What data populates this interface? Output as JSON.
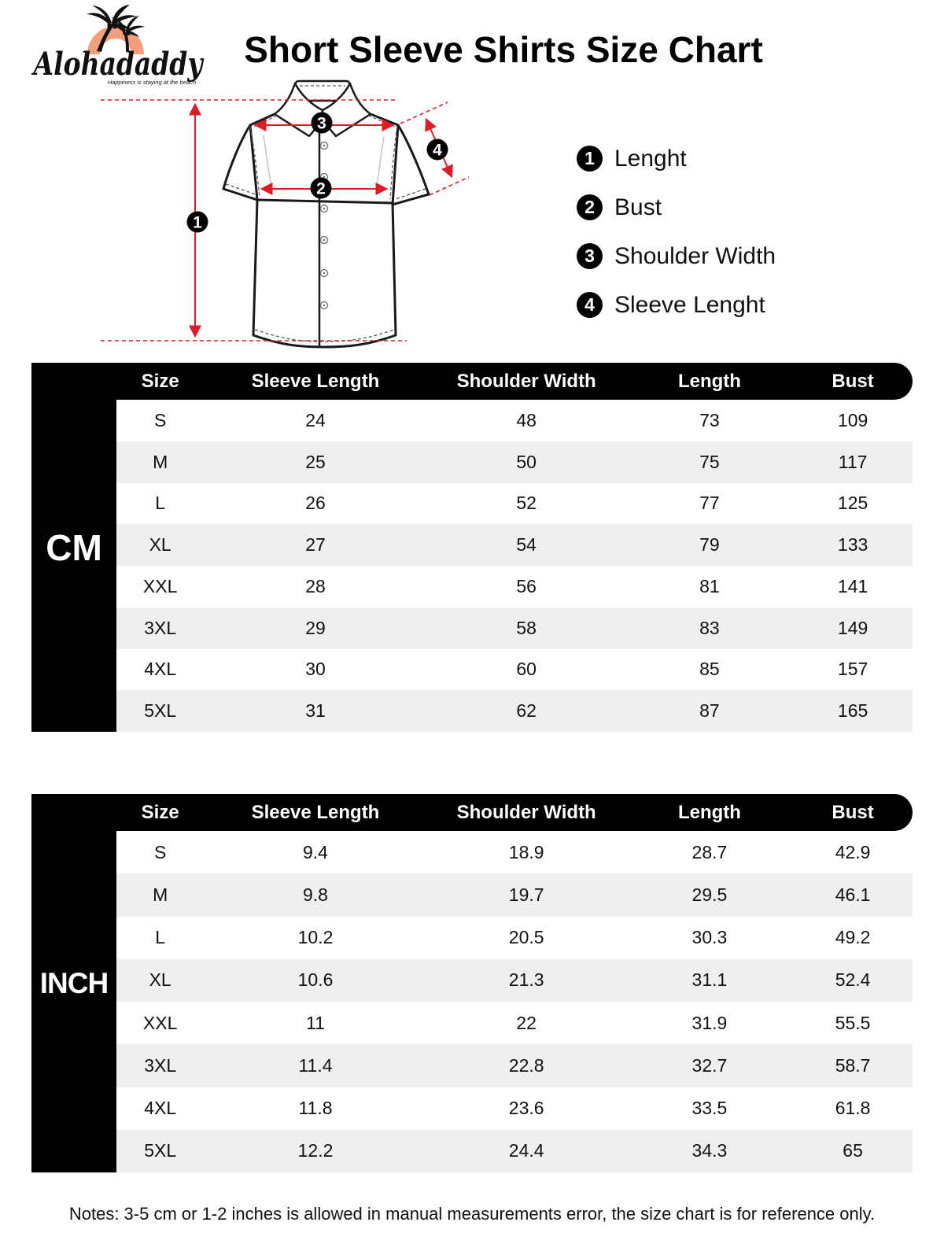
{
  "brand": {
    "name": "Alohadaddy",
    "tagline": "Happiness is staying at the beach"
  },
  "title": "Short Sleeve Shirts Size Chart",
  "legend": {
    "items": [
      {
        "num": "1",
        "label": "Lenght"
      },
      {
        "num": "2",
        "label": "Bust"
      },
      {
        "num": "3",
        "label": "Shoulder Width"
      },
      {
        "num": "4",
        "label": "Sleeve Lenght"
      }
    ]
  },
  "diagram": {
    "markers": [
      "1",
      "2",
      "3",
      "4"
    ]
  },
  "tables": {
    "cm": {
      "unit": "CM",
      "headers": [
        "Size",
        "Sleeve Length",
        "Shoulder Width",
        "Length",
        "Bust"
      ],
      "rows": [
        [
          "S",
          "24",
          "48",
          "73",
          "109"
        ],
        [
          "M",
          "25",
          "50",
          "75",
          "117"
        ],
        [
          "L",
          "26",
          "52",
          "77",
          "125"
        ],
        [
          "XL",
          "27",
          "54",
          "79",
          "133"
        ],
        [
          "XXL",
          "28",
          "56",
          "81",
          "141"
        ],
        [
          "3XL",
          "29",
          "58",
          "83",
          "149"
        ],
        [
          "4XL",
          "30",
          "60",
          "85",
          "157"
        ],
        [
          "5XL",
          "31",
          "62",
          "87",
          "165"
        ]
      ]
    },
    "inch": {
      "unit": "INCH",
      "headers": [
        "Size",
        "Sleeve Length",
        "Shoulder Width",
        "Length",
        "Bust"
      ],
      "rows": [
        [
          "S",
          "9.4",
          "18.9",
          "28.7",
          "42.9"
        ],
        [
          "M",
          "9.8",
          "19.7",
          "29.5",
          "46.1"
        ],
        [
          "L",
          "10.2",
          "20.5",
          "30.3",
          "49.2"
        ],
        [
          "XL",
          "10.6",
          "21.3",
          "31.1",
          "52.4"
        ],
        [
          "XXL",
          "11",
          "22",
          "31.9",
          "55.5"
        ],
        [
          "3XL",
          "11.4",
          "22.8",
          "32.7",
          "58.7"
        ],
        [
          "4XL",
          "11.8",
          "23.6",
          "33.5",
          "61.8"
        ],
        [
          "5XL",
          "12.2",
          "24.4",
          "34.3",
          "65"
        ]
      ]
    }
  },
  "note": "Notes: 3-5 cm or 1-2 inches is allowed in manual measurements error, the size chart is for reference only.",
  "colors": {
    "accent_red": "#dd1c27",
    "header_black": "#000000",
    "alt_row_gray": "#efefef",
    "logo_orange": "#f2a07c"
  }
}
